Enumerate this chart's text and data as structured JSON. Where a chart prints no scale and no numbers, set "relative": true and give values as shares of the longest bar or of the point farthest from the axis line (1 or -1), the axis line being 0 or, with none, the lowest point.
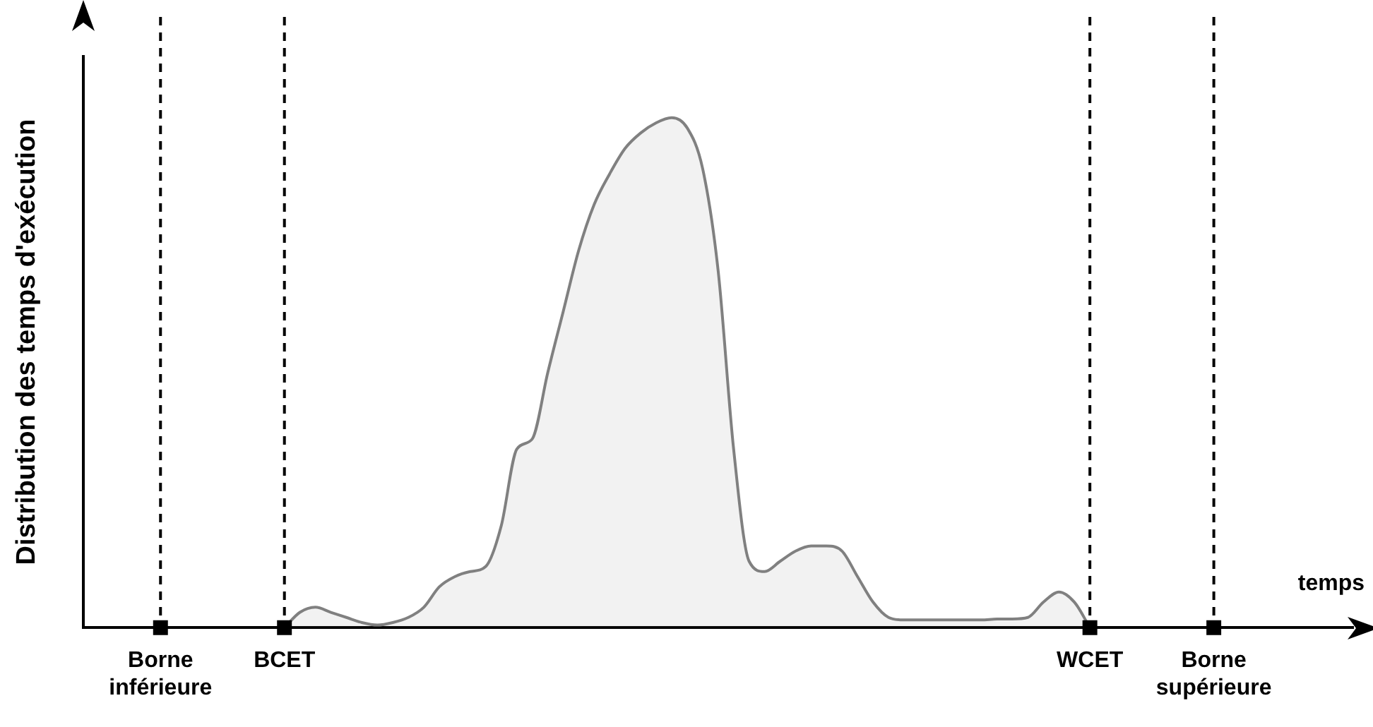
{
  "chart_data": {
    "type": "area",
    "relative": true,
    "xlabel": "temps",
    "ylabel": "Distribution des temps d'exécution",
    "categories": [
      null,
      null,
      null,
      null,
      null,
      "Borne inférieure",
      null,
      null,
      null,
      null,
      null,
      null,
      null,
      "BCET",
      null,
      null,
      null,
      null,
      null,
      null,
      null,
      null,
      null,
      null,
      null,
      null,
      null,
      null,
      null,
      null,
      null,
      null,
      null,
      null,
      null,
      null,
      null,
      null,
      null,
      null,
      null,
      null,
      null,
      null,
      null,
      null,
      null,
      null,
      null,
      null,
      null,
      null,
      null,
      null,
      null,
      null,
      null,
      null,
      null,
      null,
      null,
      null,
      null,
      null,
      null,
      "WCET",
      null,
      null,
      null,
      null,
      null,
      null,
      null,
      "Borne supérieure",
      null,
      null,
      null,
      null,
      null,
      null,
      null,
      null,
      null
    ],
    "series": [
      {
        "color": "#808080",
        "values": [
          null,
          null,
          null,
          null,
          null,
          null,
          null,
          null,
          null,
          null,
          null,
          null,
          null,
          0,
          0.03,
          0.04,
          0.03,
          0.02,
          0.01,
          0.005,
          0.01,
          0.02,
          0.04,
          0.08,
          0.1,
          0.11,
          0.12,
          0.2,
          0.35,
          0.37,
          0.5,
          0.62,
          0.74,
          0.83,
          0.89,
          0.94,
          0.97,
          0.99,
          1,
          0.98,
          0.9,
          0.7,
          0.35,
          0.13,
          0.11,
          0.13,
          0.15,
          0.16,
          0.16,
          0.15,
          0.1,
          0.05,
          0.02,
          0.015,
          0.015,
          0.015,
          0.015,
          0.015,
          0.015,
          0.017,
          0.017,
          0.02,
          0.05,
          0.07,
          0.05,
          0,
          null,
          null,
          null,
          null,
          null,
          null,
          null,
          null,
          null,
          null,
          null,
          null,
          null,
          null,
          null,
          null,
          null
        ]
      },
      {
        "type": "scatter",
        "marker": "square",
        "color": "#000000",
        "values": [
          null,
          null,
          null,
          null,
          null,
          0,
          null,
          null,
          null,
          null,
          null,
          null,
          null,
          0,
          null,
          null,
          null,
          null,
          null,
          null,
          null,
          null,
          null,
          null,
          null,
          null,
          null,
          null,
          null,
          null,
          null,
          null,
          null,
          null,
          null,
          null,
          null,
          null,
          null,
          null,
          null,
          null,
          null,
          null,
          null,
          null,
          null,
          null,
          null,
          null,
          null,
          null,
          null,
          null,
          null,
          null,
          null,
          null,
          null,
          null,
          null,
          null,
          null,
          null,
          null,
          0,
          null,
          null,
          null,
          null,
          null,
          null,
          null,
          0,
          null,
          null,
          null,
          null,
          null,
          null,
          null,
          null,
          null
        ]
      }
    ],
    "ref_lines": [
      {
        "axis": "x",
        "value": "Borne inférieure",
        "color": "#000000",
        "line_style": "dashed"
      },
      {
        "axis": "x",
        "value": "BCET",
        "color": "#000000",
        "line_style": "dashed"
      },
      {
        "axis": "x",
        "value": "WCET",
        "color": "#000000",
        "line_style": "dashed"
      },
      {
        "axis": "x",
        "value": "Borne supérieure",
        "color": "#000000",
        "line_style": "dashed"
      }
    ],
    "legend": false,
    "grid": false
  }
}
